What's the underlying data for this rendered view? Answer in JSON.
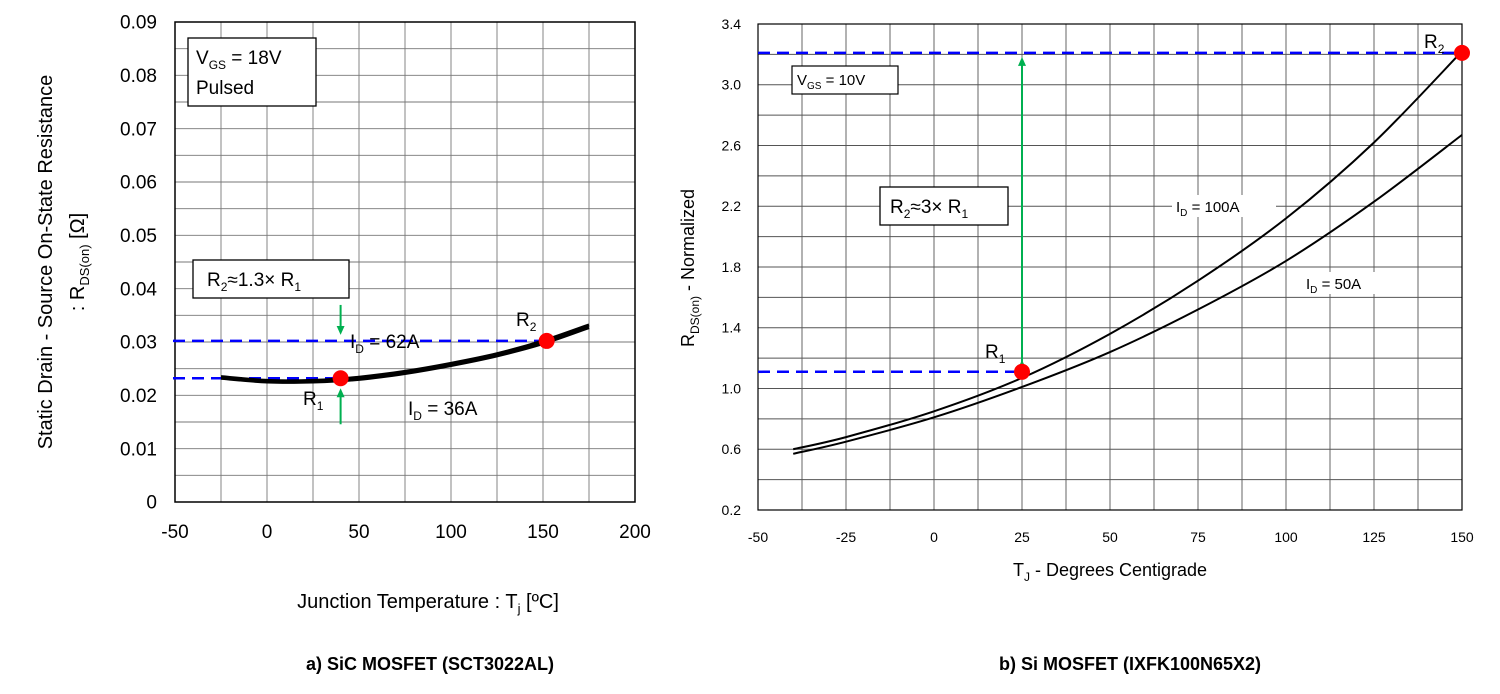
{
  "chart_data": [
    {
      "type": "line",
      "caption": "a) SiC MOSFET (SCT3022AL)",
      "xlabel": "Junction Temperature : T",
      "xlabel_sub": "j",
      "xlabel_unit": " [ºC]",
      "ylabel_line1": "Static Drain - Source On-State Resistance",
      "ylabel_line2_pre": ": R",
      "ylabel_line2_sub": "DS(on)",
      "ylabel_line2_post": " [Ω]",
      "xlim": [
        -50,
        200
      ],
      "ylim": [
        0,
        0.09
      ],
      "xticks": [
        "-50",
        "0",
        "50",
        "100",
        "150",
        "200"
      ],
      "yticks": [
        "0",
        "0.01",
        "0.02",
        "0.03",
        "0.04",
        "0.05",
        "0.06",
        "0.07",
        "0.08",
        "0.09"
      ],
      "grid": true,
      "box": {
        "line1_pre": "V",
        "line1_sub": "GS",
        "line1_post": " = 18V",
        "line2": "Pulsed"
      },
      "ratio_label": {
        "pre": "R",
        "sub1": "2",
        "mid": "≈1.3× R",
        "sub2": "1"
      },
      "series": [
        {
          "name_pre": "I",
          "name_sub": "D",
          "name_post": " = 62A",
          "x": [
            -25,
            0,
            25,
            50,
            75,
            100,
            125,
            150,
            175
          ],
          "y": [
            0.0235,
            0.0228,
            0.0228,
            0.0234,
            0.0245,
            0.026,
            0.0278,
            0.0302,
            0.0332
          ]
        },
        {
          "name_pre": "I",
          "name_sub": "D",
          "name_post": " = 36A",
          "x": [
            -25,
            0,
            25,
            50,
            75,
            100,
            125,
            150,
            175
          ],
          "y": [
            0.0232,
            0.0225,
            0.0225,
            0.023,
            0.0241,
            0.0256,
            0.0274,
            0.0297,
            0.0327
          ]
        }
      ],
      "markers": [
        {
          "pre": "R",
          "sub": "1",
          "x": 40,
          "y": 0.0232
        },
        {
          "pre": "R",
          "sub": "2",
          "x": 152,
          "y": 0.0302
        }
      ],
      "colors": {
        "marker": "#ff0000",
        "dashed": "#0000ff",
        "arrow": "#00b050",
        "curve": "#000000"
      }
    },
    {
      "type": "line",
      "caption": "b) Si MOSFET (IXFK100N65X2)",
      "xlabel_pre": "T",
      "xlabel_sub": "J",
      "xlabel_post": " - Degrees Centigrade",
      "ylabel_pre": "R",
      "ylabel_sub": "DS(on)",
      "ylabel_post": " - Normalized",
      "xlim": [
        -50,
        150
      ],
      "ylim": [
        0.2,
        3.4
      ],
      "xticks": [
        "-50",
        "-25",
        "0",
        "25",
        "50",
        "75",
        "100",
        "125",
        "150"
      ],
      "yticks": [
        "0.2",
        "0.6",
        "1.0",
        "1.4",
        "1.8",
        "2.2",
        "2.6",
        "3.0",
        "3.4"
      ],
      "grid": true,
      "box": {
        "pre": "V",
        "sub": "GS",
        "post": " = 10V"
      },
      "ratio_label": {
        "pre": "R",
        "sub1": "2",
        "mid": "≈3× R",
        "sub2": "1"
      },
      "series": [
        {
          "name_pre": "I",
          "name_sub": "D",
          "name_post": " = 100A",
          "x": [
            -40,
            -25,
            0,
            25,
            50,
            75,
            100,
            125,
            150
          ],
          "y": [
            0.6,
            0.68,
            0.85,
            1.07,
            1.36,
            1.71,
            2.12,
            2.62,
            3.22
          ]
        },
        {
          "name_pre": "I",
          "name_sub": "D",
          "name_post": " = 50A",
          "x": [
            -40,
            -25,
            0,
            25,
            50,
            75,
            100,
            125,
            150
          ],
          "y": [
            0.57,
            0.65,
            0.81,
            1.01,
            1.24,
            1.52,
            1.84,
            2.23,
            2.67
          ]
        }
      ],
      "markers": [
        {
          "pre": "R",
          "sub": "1",
          "x": 25,
          "y": 1.11
        },
        {
          "pre": "R",
          "sub": "2",
          "x": 150,
          "y": 3.21
        }
      ],
      "colors": {
        "marker": "#ff0000",
        "dashed": "#0000ff",
        "arrow": "#00b050",
        "curve": "#000000"
      }
    }
  ]
}
